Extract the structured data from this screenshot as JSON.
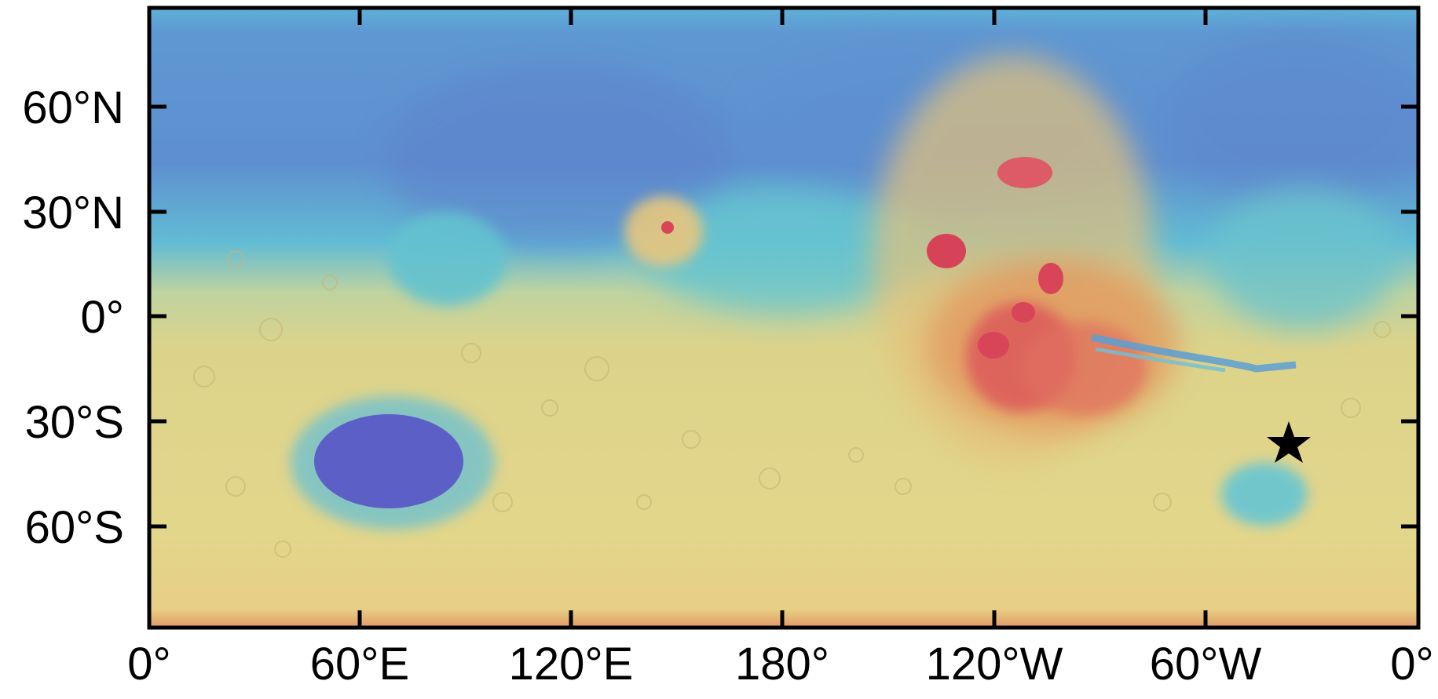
{
  "map": {
    "projection": "equirectangular",
    "longitude_ticks": [
      "0°",
      "60°E",
      "120°E",
      "180°",
      "120°W",
      "60°W",
      "0°"
    ],
    "latitude_ticks": [
      "60°N",
      "30°N",
      "0°",
      "30°S",
      "60°S"
    ],
    "marker": {
      "symbol": "star",
      "longitude_label": "~35°W",
      "latitude_label": "~35°S"
    }
  },
  "colors": {
    "lowlands": "#5b63c9",
    "northern_plains": "#5ea6d6",
    "mid": "#66cbc9",
    "highlands": "#e1d47f",
    "high": "#e6a463",
    "peaks": "#d9455a",
    "frame": "#000000"
  }
}
